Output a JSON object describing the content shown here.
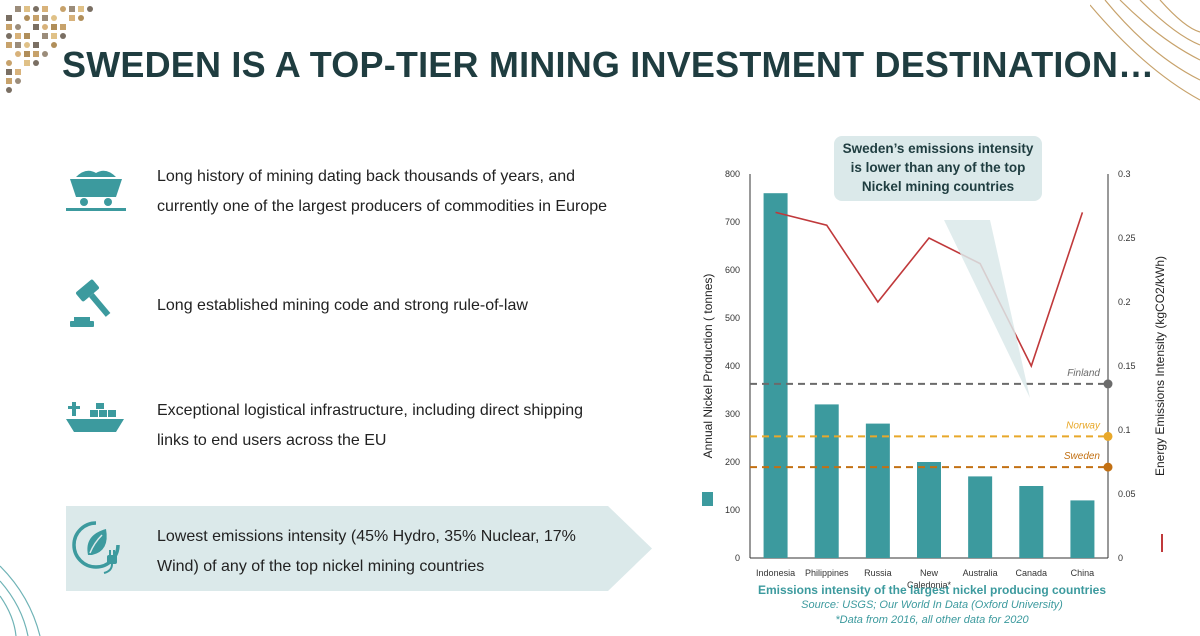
{
  "title": "SWEDEN IS A TOP-TIER MINING INVESTMENT DESTINATION…",
  "features": [
    {
      "icon": "mining-cart-icon",
      "lines": [
        "Long history of mining dating back thousands of years, and",
        "currently one of the largest producers of commodities in Europe"
      ]
    },
    {
      "icon": "gavel-icon",
      "lines": [
        "Long established mining code and strong rule-of-law"
      ]
    },
    {
      "icon": "cargo-ship-icon",
      "lines": [
        "Exceptional logistical infrastructure, including direct shipping",
        "links to end users across the EU"
      ]
    },
    {
      "icon": "green-energy-icon",
      "lines": [
        "Lowest emissions intensity (45% Hydro, 35% Nuclear, 17%",
        "Wind) of any of the top nickel mining countries"
      ]
    }
  ],
  "callout": [
    "Sweden’s emissions intensity",
    "is lower than any of the top",
    "Nickel mining countries"
  ],
  "caption": {
    "title": "Emissions intensity of the largest nickel producing countries",
    "source": "Source: USGS; Our World In Data (Oxford University)",
    "note": "*Data from 2016, all other data for 2020"
  },
  "colors": {
    "title": "#1f3d40",
    "teal": "#3c9a9e",
    "line": "#c0393b",
    "finland": "#6b6b6b",
    "norway": "#e8a82a",
    "sweden": "#c27013",
    "highlight": "#dbe9ea"
  },
  "chart_data": {
    "type": "bar",
    "categories": [
      "Indonesia",
      "Philippines",
      "Russia",
      "New Caledonia*",
      "Australia",
      "Canada",
      "China"
    ],
    "ylabel": "Annual Nickel Production ( tonnes)",
    "y2label": "Energy Emissions Intensity  (kgCO2/kWh)",
    "ylim": [
      0,
      800
    ],
    "y2lim": [
      0,
      0.3
    ],
    "yticks": [
      "0",
      "100",
      "200",
      "300",
      "400",
      "500",
      "600",
      "700",
      "800"
    ],
    "y2ticks": [
      "0",
      "0.05",
      "0.1",
      "0.15",
      "0.2",
      "0.25",
      "0.3"
    ],
    "series": [
      {
        "type": "bar",
        "axis": "left",
        "values": [
          760,
          320,
          280,
          200,
          170,
          150,
          120
        ]
      },
      {
        "type": "line",
        "axis": "right",
        "values": [
          0.27,
          0.26,
          0.2,
          0.25,
          0.23,
          0.15,
          0.27
        ]
      }
    ],
    "reference_lines": [
      {
        "name": "Finland",
        "value": 0.136
      },
      {
        "name": "Norway",
        "value": 0.095
      },
      {
        "name": "Sweden",
        "value": 0.071
      }
    ],
    "grid": false
  }
}
